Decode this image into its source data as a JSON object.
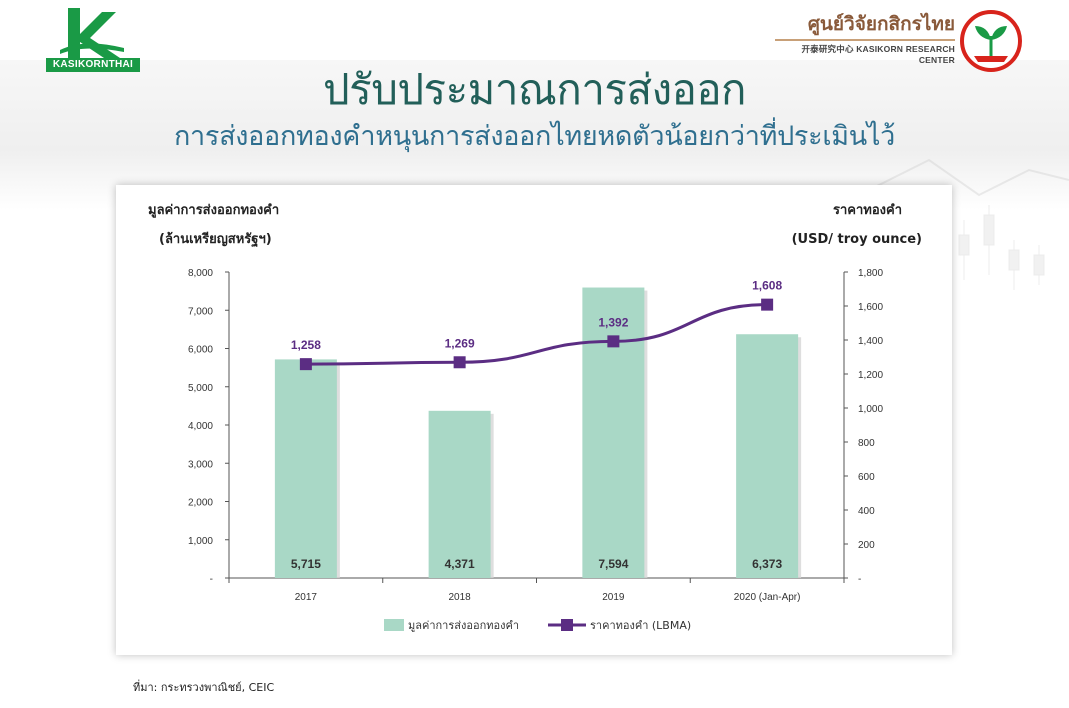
{
  "logo_left": {
    "text": "KASIKORNTHAI",
    "colors": {
      "green": "#1a9a46"
    }
  },
  "brand": {
    "thai": "ศูนย์วิจัยกสิกรไทย",
    "english": "开泰研究中心 KASIKORN RESEARCH CENTER"
  },
  "title": "ปรับประมาณการส่งออก",
  "subtitle": "การส่งออกทองคำหนุนการส่งออกไทยหดตัวน้อยกว่าที่ประเมินไว้",
  "source": "ที่มา: กระทรวงพาณิชย์, CEIC",
  "chart_data": {
    "type": "bar",
    "categories": [
      "2017",
      "2018",
      "2019",
      "2020 (Jan-Apr)"
    ],
    "series": [
      {
        "name": "มูลค่าการส่งออกทองคำ",
        "type": "bar",
        "axis": "left",
        "values": [
          5715,
          4371,
          7594,
          6373
        ],
        "labels": [
          "5,715",
          "4,371",
          "7,594",
          "6,373"
        ],
        "color": "#a9d8c6"
      },
      {
        "name": "ราคาทองคำ (LBMA)",
        "type": "line",
        "axis": "right",
        "values": [
          1258,
          1269,
          1392,
          1608
        ],
        "labels": [
          "1,258",
          "1,269",
          "1,392",
          "1,608"
        ],
        "color": "#5b2d83"
      }
    ],
    "ylabel_left": [
      "มูลค่าการส่งออกทองคำ",
      "(ล้านเหรียญสหรัฐฯ)"
    ],
    "ylabel_right": [
      "ราคาทองคำ",
      "(USD/ troy ounce)"
    ],
    "ylim_left": [
      0,
      8000
    ],
    "ylim_right": [
      0,
      1800
    ],
    "yticks_left": [
      "-",
      "1,000",
      "2,000",
      "3,000",
      "4,000",
      "5,000",
      "6,000",
      "7,000",
      "8,000"
    ],
    "yticks_right": [
      "-",
      "200",
      "400",
      "600",
      "800",
      "1,000",
      "1,200",
      "1,400",
      "1,600",
      "1,800"
    ],
    "grid": false,
    "legend_position": "bottom-center"
  }
}
